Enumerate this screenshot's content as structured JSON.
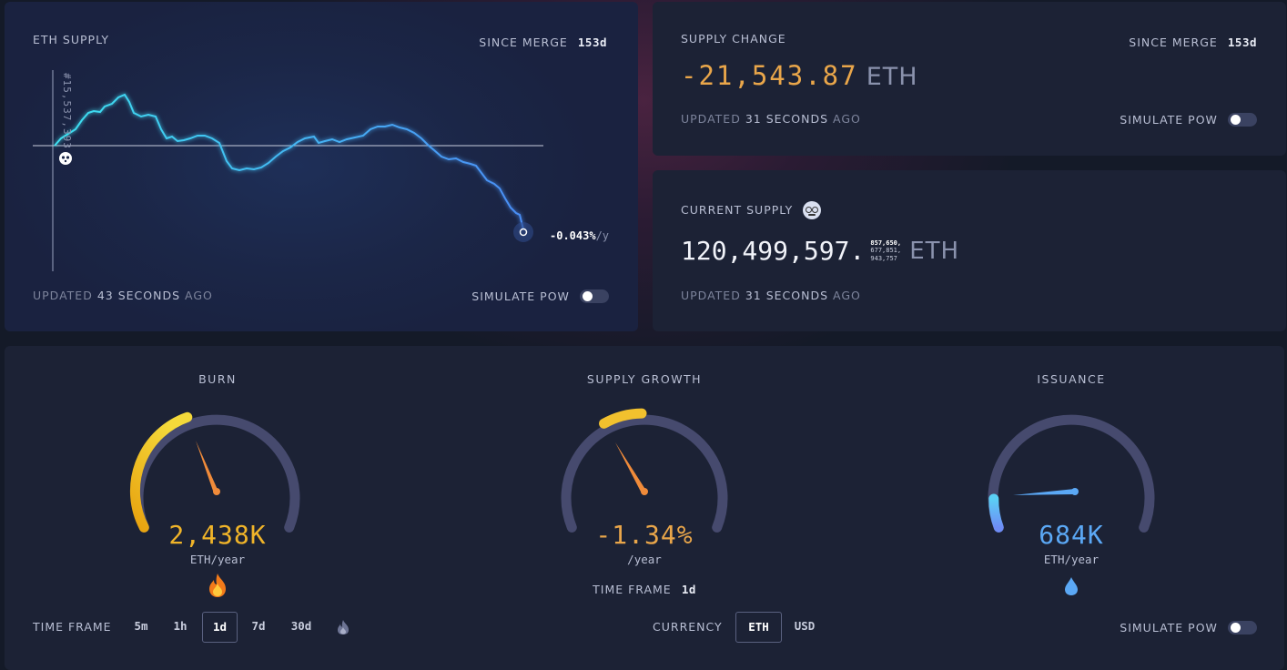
{
  "eth_supply": {
    "title": "ETH SUPPLY",
    "since_merge_label": "SINCE MERGE",
    "since_merge_value": "153d",
    "block_label": "#15,537,393",
    "rate_value": "-0.043%",
    "rate_unit": "/y",
    "updated_prefix": "UPDATED",
    "updated_value": "43 SECONDS",
    "updated_suffix": "AGO",
    "simulate_label": "SIMULATE PoW"
  },
  "supply_change": {
    "title": "SUPPLY CHANGE",
    "since_merge_label": "SINCE MERGE",
    "since_merge_value": "153d",
    "value": "-21,543.87",
    "unit": "ETH",
    "updated_prefix": "UPDATED",
    "updated_value": "31 SECONDS",
    "updated_suffix": "AGO",
    "simulate_label": "SIMULATE PoW"
  },
  "current_supply": {
    "title": "CURRENT SUPPLY",
    "icon": "nerd-face-icon",
    "value": "120,499,597.",
    "fraction_1": "857,650,",
    "fraction_2": "677,851,",
    "fraction_3": "943,757",
    "unit": "ETH",
    "updated_prefix": "UPDATED",
    "updated_value": "31 SECONDS",
    "updated_suffix": "AGO"
  },
  "gauges": {
    "burn": {
      "title": "BURN",
      "value": "2,438K",
      "unit": "ETH/year",
      "icon": "fire-icon",
      "level": 0.42
    },
    "supply_growth": {
      "title": "SUPPLY GROWTH",
      "value": "-1.34%",
      "unit": "/year",
      "timeframe_label": "TIME FRAME",
      "timeframe_value": "1d",
      "level": 0.2
    },
    "issuance": {
      "title": "ISSUANCE",
      "value": "684K",
      "unit": "ETH/year",
      "icon": "droplet-icon",
      "level": 0.1
    }
  },
  "controls": {
    "timeframe_label": "TIME FRAME",
    "timeframes": [
      "5m",
      "1h",
      "1d",
      "7d",
      "30d"
    ],
    "timeframe_selected": "1d",
    "timeframe_extra_icon": "flame-icon",
    "currency_label": "CURRENCY",
    "currencies": [
      "ETH",
      "USD"
    ],
    "currency_selected": "ETH",
    "simulate_label": "SIMULATE PoW"
  },
  "colors": {
    "burn": "#f0b429",
    "growth_value": "#e9a64a",
    "issuance": "#5ba8f5",
    "supply_line": "#3dd0f5",
    "needle": "#f08b3a"
  }
}
